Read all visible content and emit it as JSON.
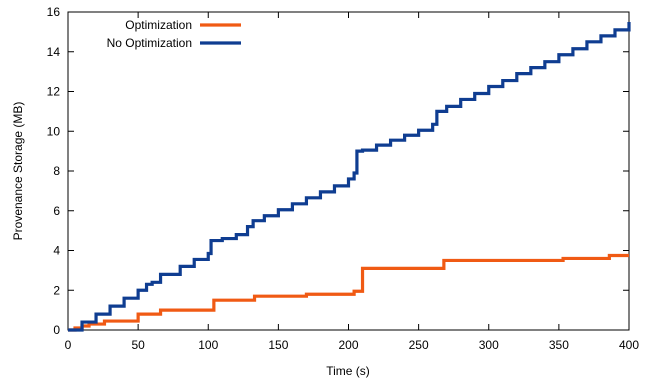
{
  "chart_data": {
    "type": "line",
    "title": "",
    "xlabel": "Time (s)",
    "ylabel": "Provenance Storage (MB)",
    "xlim": [
      0,
      400
    ],
    "ylim": [
      0,
      16
    ],
    "xticks": [
      0,
      50,
      100,
      150,
      200,
      250,
      300,
      350,
      400
    ],
    "yticks": [
      0,
      2,
      4,
      6,
      8,
      10,
      12,
      14,
      16
    ],
    "grid": false,
    "legend_position": "top-left",
    "series": [
      {
        "name": "Optimization",
        "color": "#f05a14",
        "step": true,
        "points": [
          [
            0,
            0
          ],
          [
            5,
            0.1
          ],
          [
            10,
            0.2
          ],
          [
            15,
            0.3
          ],
          [
            26,
            0.45
          ],
          [
            50,
            0.8
          ],
          [
            66,
            1.0
          ],
          [
            104,
            1.5
          ],
          [
            133,
            1.7
          ],
          [
            170,
            1.8
          ],
          [
            204,
            1.95
          ],
          [
            210,
            3.1
          ],
          [
            268,
            3.5
          ],
          [
            353,
            3.6
          ],
          [
            386,
            3.75
          ],
          [
            400,
            3.75
          ]
        ]
      },
      {
        "name": "No Optimization",
        "color": "#0f3d91",
        "step": true,
        "points": [
          [
            0,
            0
          ],
          [
            10,
            0.4
          ],
          [
            20,
            0.8
          ],
          [
            30,
            1.2
          ],
          [
            40,
            1.6
          ],
          [
            50,
            2.0
          ],
          [
            56,
            2.3
          ],
          [
            60,
            2.4
          ],
          [
            66,
            2.8
          ],
          [
            80,
            3.2
          ],
          [
            90,
            3.55
          ],
          [
            100,
            3.85
          ],
          [
            102,
            4.5
          ],
          [
            110,
            4.6
          ],
          [
            120,
            4.8
          ],
          [
            128,
            5.2
          ],
          [
            132,
            5.5
          ],
          [
            140,
            5.75
          ],
          [
            150,
            6.05
          ],
          [
            160,
            6.35
          ],
          [
            170,
            6.65
          ],
          [
            180,
            6.95
          ],
          [
            190,
            7.25
          ],
          [
            200,
            7.6
          ],
          [
            204,
            7.9
          ],
          [
            206,
            9.0
          ],
          [
            210,
            9.05
          ],
          [
            220,
            9.3
          ],
          [
            230,
            9.55
          ],
          [
            240,
            9.8
          ],
          [
            250,
            10.05
          ],
          [
            260,
            10.35
          ],
          [
            263,
            11.0
          ],
          [
            270,
            11.25
          ],
          [
            280,
            11.6
          ],
          [
            290,
            11.9
          ],
          [
            300,
            12.25
          ],
          [
            310,
            12.55
          ],
          [
            320,
            12.9
          ],
          [
            330,
            13.2
          ],
          [
            340,
            13.5
          ],
          [
            350,
            13.85
          ],
          [
            360,
            14.15
          ],
          [
            370,
            14.5
          ],
          [
            380,
            14.8
          ],
          [
            390,
            15.1
          ],
          [
            400,
            15.5
          ]
        ]
      }
    ]
  }
}
